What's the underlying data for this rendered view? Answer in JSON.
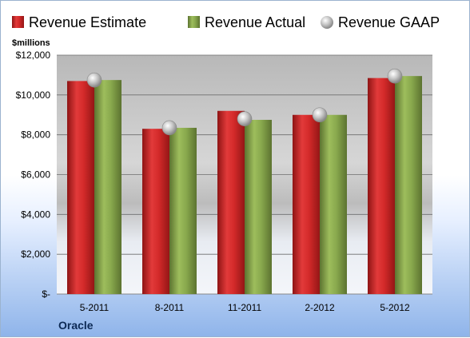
{
  "chart_data": {
    "type": "bar",
    "unit_label": "$millions",
    "categories": [
      "5-2011",
      "8-2011",
      "11-2011",
      "2-2012",
      "5-2012"
    ],
    "series": [
      {
        "name": "Revenue Estimate",
        "kind": "bar",
        "color": "#d42a2a",
        "values": [
          10700,
          8300,
          9200,
          9000,
          10850
        ]
      },
      {
        "name": "Revenue Actual",
        "kind": "bar",
        "color": "#8aaa4e",
        "values": [
          10750,
          8350,
          8750,
          9000,
          10950
        ]
      },
      {
        "name": "Revenue GAAP",
        "kind": "marker",
        "color": "#b5b5b5",
        "values": [
          10750,
          8350,
          8800,
          9000,
          10950
        ]
      }
    ],
    "y_ticks": [
      "$-",
      "$2,000",
      "$4,000",
      "$6,000",
      "$8,000",
      "$10,000",
      "$12,000"
    ],
    "ylim": [
      0,
      12000
    ],
    "grid": true,
    "legend_position": "top",
    "company": "Oracle"
  }
}
